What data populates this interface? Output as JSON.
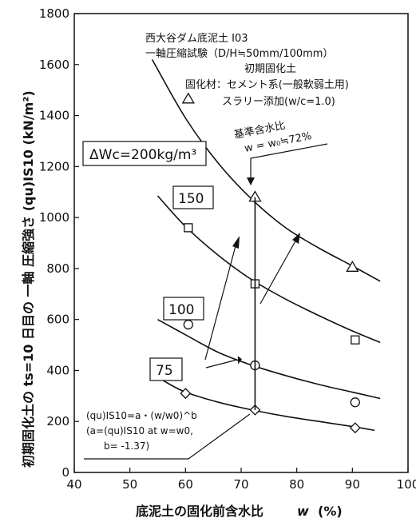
{
  "chart_data": {
    "type": "scatter",
    "xlabel": "底泥土の固化前含水比",
    "xlabel_var": "w",
    "xlabel_unit": "(%)",
    "ylabel": "初期固化土の ts=10 日目の 一軸 圧縮強さ (qu)IS10 (kN/m²)",
    "xlim": [
      40,
      100
    ],
    "ylim": [
      0,
      1800
    ],
    "xticks": [
      "40",
      "50",
      "60",
      "70",
      "80",
      "90",
      "100"
    ],
    "yticks": [
      "0",
      "200",
      "400",
      "600",
      "800",
      "1000",
      "1200",
      "1400",
      "1600",
      "1800"
    ],
    "grid": false,
    "series": [
      {
        "name": "ΔWc=200kg/m³",
        "marker": "triangle",
        "points": [
          [
            60.5,
            1465
          ],
          [
            72.5,
            1080
          ],
          [
            90.0,
            805
          ]
        ],
        "curve_x": [
          54,
          60,
          66,
          72,
          78,
          84,
          90,
          95
        ],
        "curve_y": [
          1620,
          1390,
          1210,
          1070,
          960,
          880,
          810,
          750
        ]
      },
      {
        "name": "150",
        "marker": "square",
        "points": [
          [
            60.5,
            960
          ],
          [
            72.5,
            740
          ],
          [
            90.5,
            520
          ]
        ],
        "curve_x": [
          55,
          60,
          66,
          72,
          78,
          84,
          90,
          95
        ],
        "curve_y": [
          1085,
          965,
          850,
          755,
          680,
          615,
          555,
          510
        ]
      },
      {
        "name": "100",
        "marker": "circle",
        "points": [
          [
            60.5,
            580
          ],
          [
            72.5,
            420
          ],
          [
            90.5,
            275
          ]
        ],
        "curve_x": [
          55,
          60,
          66,
          72,
          78,
          84,
          90,
          95
        ],
        "curve_y": [
          600,
          540,
          470,
          420,
          380,
          345,
          315,
          290
        ]
      },
      {
        "name": "75",
        "marker": "diamond",
        "points": [
          [
            60.0,
            310
          ],
          [
            72.5,
            245
          ],
          [
            90.5,
            175
          ]
        ],
        "curve_x": [
          56,
          60,
          66,
          72,
          78,
          84,
          90,
          94
        ],
        "curve_y": [
          360,
          315,
          275,
          245,
          220,
          200,
          180,
          165
        ]
      }
    ],
    "reference_line": {
      "x": 72.5,
      "label_1": "基準含水比",
      "label_2": "w = w₀≒72%"
    },
    "annotations": {
      "title_lines": [
        "西大谷ダム底泥土 I03",
        "一軸圧縮試験（D/H≒50mm/100mm）",
        "初期固化土",
        "固化材：セメント系(一般軟弱土用)",
        "スラリー添加(w/c=1.0)"
      ],
      "formula_line1": "(qu)IS10=a・(w/w0)^b",
      "formula_line2": "(a=(qu)IS10 at w=w0,",
      "formula_line3": "b= -1.37)"
    }
  }
}
